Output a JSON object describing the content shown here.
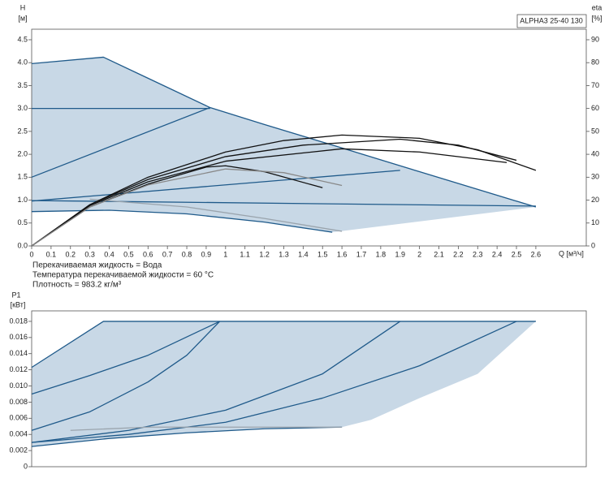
{
  "chart_data": [
    {
      "type": "line",
      "title": "ALPHA3 25-40 130",
      "ylabel": "H",
      "yunit": "[м]",
      "y2label": "eta",
      "y2unit": "[%]",
      "xlabel": "Q [м³/ч]",
      "notes": [
        "Перекачиваемая жидкость = Вода",
        "Температура перекачиваемой жидкости = 60 °C",
        "Плотность = 983.2 кг/м³"
      ],
      "xlim": [
        0,
        2.86
      ],
      "ylim": [
        0,
        4.73
      ],
      "y2lim": [
        0,
        94.6
      ],
      "xticks": [
        0,
        0.1,
        0.2,
        0.3,
        0.4,
        0.5,
        0.6,
        0.7,
        0.8,
        0.9,
        1,
        1.1,
        1.2,
        1.3,
        1.4,
        1.5,
        1.6,
        1.7,
        1.8,
        1.9,
        2,
        2.1,
        2.2,
        2.3,
        2.4,
        2.5,
        2.6
      ],
      "yticks": [
        {
          "value": 0,
          "label": "0.0"
        },
        0.5,
        {
          "value": 1,
          "label": "1.0"
        },
        1.5,
        {
          "value": 2,
          "label": "2.0"
        },
        2.5,
        {
          "value": 3,
          "label": "3.0"
        },
        3.5,
        {
          "value": 4,
          "label": "4.0"
        },
        4.5
      ],
      "y2ticks": [
        0,
        10,
        20,
        30,
        40,
        50,
        60,
        70,
        80,
        90
      ],
      "region": {
        "color": "#c8d8e6",
        "x": [
          0,
          0,
          0.37,
          0.92,
          2.6,
          1.55,
          1.2,
          0.8,
          0.4
        ],
        "values": [
          0.75,
          3.98,
          4.12,
          3.02,
          0.85,
          0.3,
          0.52,
          0.7,
          0.78
        ]
      },
      "series": [
        {
          "color": "#1f5a8a",
          "x": [
            0,
            0.37,
            0.6,
            0.92,
            1.2,
            1.56,
            2.0,
            2.6
          ],
          "values": [
            3.98,
            4.12,
            3.66,
            3.02,
            2.65,
            2.19,
            1.62,
            0.85
          ]
        },
        {
          "color": "#1f5a8a",
          "x": [
            0,
            0.92
          ],
          "values": [
            3.0,
            3.0
          ]
        },
        {
          "color": "#1f5a8a",
          "x": [
            0,
            0.92
          ],
          "values": [
            1.5,
            3.02
          ]
        },
        {
          "color": "#1f5a8a",
          "x": [
            0,
            2.6
          ],
          "values": [
            0.99,
            0.87
          ]
        },
        {
          "color": "#1f5a8a",
          "x": [
            0,
            1.9
          ],
          "values": [
            0.98,
            1.65
          ]
        },
        {
          "color": "#1f5a8a",
          "x": [
            0,
            0.4,
            0.8,
            1.2,
            1.55
          ],
          "values": [
            0.75,
            0.78,
            0.7,
            0.52,
            0.3
          ]
        },
        {
          "color": "#9aa4ad",
          "x": [
            0.3,
            0.8,
            1.2,
            1.6
          ],
          "values": [
            1.02,
            0.85,
            0.6,
            0.32
          ]
        },
        {
          "color": "#111111",
          "axis": "y2",
          "x": [
            0,
            0.3,
            0.6,
            1.0,
            1.3,
            1.6,
            2.0,
            2.3,
            2.6
          ],
          "values": [
            0,
            18,
            30,
            41,
            46,
            48.4,
            47,
            42,
            33
          ]
        },
        {
          "color": "#111111",
          "axis": "y2",
          "x": [
            0,
            0.3,
            0.6,
            1.0,
            1.4,
            1.9,
            2.2,
            2.5
          ],
          "values": [
            0,
            18,
            29,
            39,
            44,
            46.6,
            44,
            37.4
          ]
        },
        {
          "color": "#111111",
          "axis": "y2",
          "x": [
            0,
            0.3,
            0.6,
            1.0,
            1.6,
            2.0,
            2.45
          ],
          "values": [
            0,
            17.6,
            28,
            37,
            42.4,
            41,
            36.4
          ]
        },
        {
          "color": "#111111",
          "axis": "y2",
          "x": [
            0,
            0.3,
            0.6,
            0.9,
            1.0,
            1.2,
            1.5
          ],
          "values": [
            0,
            17,
            27,
            34.4,
            35,
            32.4,
            25.4
          ]
        },
        {
          "color": "#888888",
          "axis": "y2",
          "x": [
            0,
            0.3,
            0.6,
            1.0,
            1.3,
            1.6
          ],
          "values": [
            0,
            17,
            26.6,
            33.6,
            32,
            26.4
          ]
        }
      ]
    },
    {
      "type": "line",
      "ylabel": "P1",
      "yunit": "[кВт]",
      "xlim": [
        0,
        2.86
      ],
      "ylim": [
        0,
        0.0193
      ],
      "yticks": [
        0,
        0.002,
        0.004,
        0.006,
        0.008,
        {
          "value": 0.01,
          "label": "0.010"
        },
        0.012,
        0.014,
        0.016,
        0.018
      ],
      "region": {
        "color": "#c8d8e6",
        "x": [
          0,
          0,
          0.37,
          2.6,
          2.3,
          2.0,
          1.75,
          1.6,
          1.2,
          0.8,
          0.4
        ],
        "values": [
          0.0025,
          0.0123,
          0.018,
          0.018,
          0.0115,
          0.0085,
          0.0058,
          0.0049,
          0.0047,
          0.0042,
          0.0035
        ]
      },
      "series": [
        {
          "color": "#1f5a8a",
          "x": [
            0,
            0.37,
            2.6
          ],
          "values": [
            0.0123,
            0.018,
            0.018
          ]
        },
        {
          "color": "#1f5a8a",
          "x": [
            0,
            0.3,
            0.6,
            0.97
          ],
          "values": [
            0.009,
            0.0113,
            0.0138,
            0.018
          ]
        },
        {
          "color": "#1f5a8a",
          "x": [
            0,
            0.3,
            0.6,
            0.8,
            0.97
          ],
          "values": [
            0.0045,
            0.0068,
            0.0105,
            0.0138,
            0.018
          ]
        },
        {
          "color": "#1f5a8a",
          "x": [
            0,
            0.5,
            1.0,
            1.5,
            1.9
          ],
          "values": [
            0.003,
            0.0045,
            0.007,
            0.0115,
            0.018
          ]
        },
        {
          "color": "#1f5a8a",
          "x": [
            0,
            0.5,
            1.0,
            1.5,
            2.0,
            2.5
          ],
          "values": [
            0.003,
            0.004,
            0.0055,
            0.0085,
            0.0125,
            0.018
          ]
        },
        {
          "color": "#1f5a8a",
          "x": [
            0,
            0.4,
            0.8,
            1.2,
            1.6
          ],
          "values": [
            0.0025,
            0.0035,
            0.0042,
            0.0047,
            0.0049
          ]
        },
        {
          "color": "#9aa4ad",
          "x": [
            0.2,
            0.6,
            1.0,
            1.6
          ],
          "values": [
            0.0045,
            0.0049,
            0.0049,
            0.0049
          ]
        }
      ]
    }
  ]
}
